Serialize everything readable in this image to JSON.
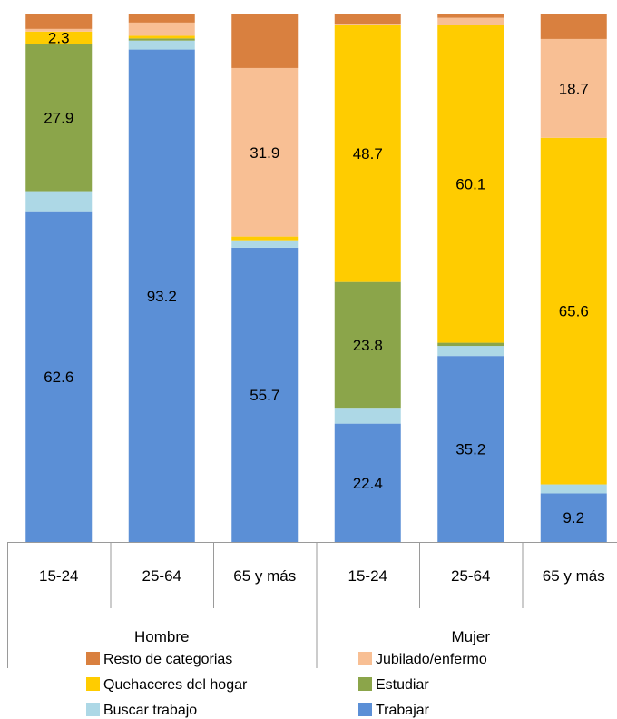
{
  "chart_data": {
    "type": "bar",
    "stacked": true,
    "ylim": [
      0,
      100
    ],
    "groups": [
      "Hombre",
      "Mujer"
    ],
    "categories": [
      "15-24",
      "25-64",
      "65 y más",
      "15-24",
      "25-64",
      "65 y más"
    ],
    "series": [
      {
        "name": "Trabajar",
        "color": "#5b8fd6",
        "values": [
          62.6,
          93.2,
          55.7,
          22.4,
          35.2,
          9.2
        ],
        "labels": [
          "62.6",
          "93.2",
          "55.7",
          "22.4",
          "35.2",
          "9.2"
        ]
      },
      {
        "name": "Buscar trabajo",
        "color": "#add8e6",
        "values": [
          3.8,
          1.7,
          1.4,
          3.0,
          1.9,
          1.7
        ],
        "labels": [
          "",
          "",
          "",
          "",
          "",
          ""
        ]
      },
      {
        "name": "Estudiar",
        "color": "#8ba54a",
        "values": [
          27.9,
          0.4,
          0.0,
          23.8,
          0.6,
          0.0
        ],
        "labels": [
          "27.9",
          "",
          "",
          "23.8",
          "",
          ""
        ]
      },
      {
        "name": "Quehaceres del hogar",
        "color": "#ffcc00",
        "values": [
          2.3,
          0.5,
          0.7,
          48.7,
          60.1,
          65.6
        ],
        "labels": [
          "2.3",
          "",
          "",
          "48.7",
          "60.1",
          "65.6"
        ]
      },
      {
        "name": "Jubilado/enfermo",
        "color": "#f8bf94",
        "values": [
          0.5,
          2.5,
          31.9,
          0.2,
          1.4,
          18.7
        ],
        "labels": [
          "",
          "",
          "31.9",
          "",
          "",
          "18.7"
        ]
      },
      {
        "name": "Resto de categorias",
        "color": "#d9803f",
        "values": [
          2.9,
          1.7,
          10.3,
          1.9,
          0.8,
          4.8
        ],
        "labels": [
          "",
          "",
          "",
          "",
          "",
          ""
        ]
      }
    ],
    "legend_order": [
      "Resto de categorias",
      "Jubilado/enfermo",
      "Quehaceres del hogar",
      "Estudiar",
      "Buscar trabajo",
      "Trabajar"
    ]
  }
}
